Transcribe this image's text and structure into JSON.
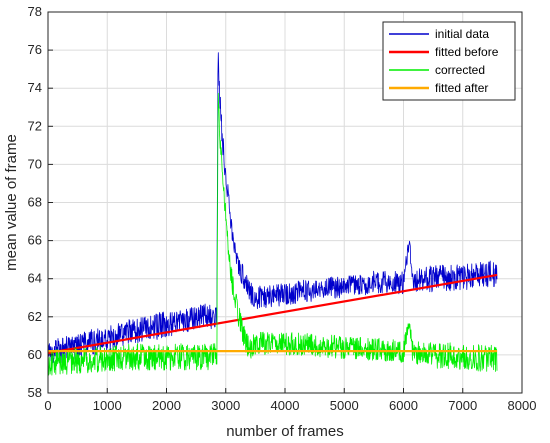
{
  "chart_data": {
    "type": "line",
    "title": "",
    "xlabel": "number of frames",
    "ylabel": "mean value of frame",
    "xlim": [
      0,
      8000
    ],
    "ylim": [
      58,
      78
    ],
    "xticks": [
      0,
      1000,
      2000,
      3000,
      4000,
      5000,
      6000,
      7000,
      8000
    ],
    "yticks": [
      58,
      60,
      62,
      64,
      66,
      68,
      70,
      72,
      74,
      76,
      78
    ],
    "grid": true,
    "legend_position": "top-right",
    "series": [
      {
        "name": "initial data",
        "color": "#0000cc",
        "style": "noisy",
        "x": [
          0,
          500,
          1000,
          1500,
          2000,
          2500,
          2850,
          2870,
          2900,
          2950,
          3000,
          3050,
          3100,
          3200,
          3300,
          3400,
          3500,
          4000,
          4500,
          5000,
          5500,
          6000,
          6100,
          6150,
          6200,
          6500,
          7000,
          7500,
          7580
        ],
        "y": [
          60.0,
          60.5,
          60.8,
          61.3,
          61.6,
          61.9,
          62.1,
          75.8,
          73.5,
          71.0,
          69.5,
          68.0,
          66.5,
          65.0,
          64.0,
          63.3,
          63.0,
          63.2,
          63.4,
          63.6,
          63.8,
          63.8,
          66.0,
          63.8,
          63.9,
          64.0,
          64.1,
          64.3,
          64.2
        ],
        "spread": [
          0.7,
          0.7,
          0.7,
          0.7,
          0.7,
          0.7,
          0.7,
          0.5,
          0.6,
          0.6,
          0.6,
          0.6,
          0.6,
          0.6,
          0.6,
          0.6,
          0.6,
          0.6,
          0.6,
          0.6,
          0.6,
          0.6,
          0.3,
          0.6,
          0.6,
          0.7,
          0.7,
          0.7,
          0.7
        ]
      },
      {
        "name": "fitted before",
        "color": "#ff0000",
        "style": "line",
        "x": [
          0,
          7580
        ],
        "y": [
          60.1,
          64.2
        ]
      },
      {
        "name": "corrected",
        "color": "#00ee00",
        "style": "noisy",
        "x": [
          0,
          500,
          1000,
          1500,
          2000,
          2500,
          2850,
          2870,
          2900,
          2950,
          3000,
          3050,
          3100,
          3200,
          3300,
          3400,
          3500,
          4000,
          4500,
          5000,
          5500,
          6000,
          6100,
          6150,
          6200,
          6500,
          7000,
          7500,
          7580
        ],
        "y": [
          59.6,
          59.7,
          59.8,
          59.9,
          59.9,
          59.9,
          59.9,
          74.0,
          71.5,
          69.0,
          67.5,
          65.5,
          64.0,
          62.3,
          61.0,
          60.3,
          60.6,
          60.6,
          60.5,
          60.4,
          60.3,
          60.2,
          61.8,
          60.2,
          60.1,
          60.0,
          59.9,
          59.8,
          59.8
        ],
        "spread": [
          0.7,
          0.7,
          0.7,
          0.7,
          0.7,
          0.7,
          0.7,
          0.5,
          0.6,
          0.6,
          0.6,
          0.6,
          0.6,
          0.6,
          0.6,
          0.6,
          0.6,
          0.6,
          0.6,
          0.6,
          0.6,
          0.6,
          0.3,
          0.6,
          0.6,
          0.7,
          0.7,
          0.7,
          0.7
        ]
      },
      {
        "name": "fitted after",
        "color": "#ffaa00",
        "style": "line",
        "x": [
          0,
          7580
        ],
        "y": [
          60.2,
          60.2
        ]
      }
    ]
  }
}
